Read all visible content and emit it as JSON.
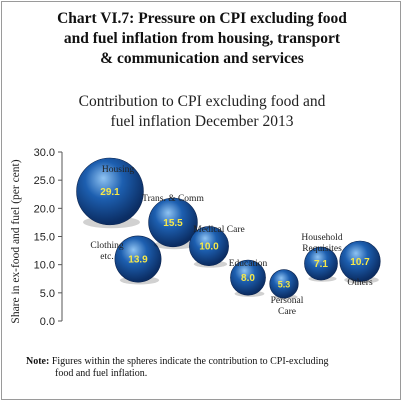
{
  "figure_title": [
    "Chart VI.7: Pressure on CPI excluding food",
    "and fuel inflation from housing, transport",
    "& communication and services"
  ],
  "note": {
    "label": "Note:",
    "line1": "Figures within the spheres indicate the contribution to CPI-excluding",
    "line2": "food and fuel inflation."
  },
  "colors": {
    "bubble_dark": "#0b2d63",
    "bubble_mid": "#1d5fb0",
    "bubble_light": "#8fc3f2",
    "bubble_value": "#f5e84a"
  },
  "chart_data": {
    "type": "scatter",
    "title_lines": [
      "Contribution to CPI excluding food and",
      "fuel inflation December 2013"
    ],
    "xlabel": "",
    "ylabel": "Share in ex-food and fuel (per cent)",
    "ylim": [
      0,
      30
    ],
    "yticks": [
      "0.0",
      "5.0",
      "10.0",
      "15.0",
      "20.0",
      "25.0",
      "30.0"
    ],
    "grid": false,
    "points": [
      {
        "label": "Housing",
        "y": 23.0,
        "value": "29.1"
      },
      {
        "label": "Clothing etc.",
        "y": 11.0,
        "value": "13.9"
      },
      {
        "label": "Trans. & Comm",
        "y": 17.5,
        "value": "15.5"
      },
      {
        "label": "Medical Care",
        "y": 13.3,
        "value": "10.0"
      },
      {
        "label": "Education",
        "y": 7.7,
        "value": "8.0"
      },
      {
        "label": "Personal Care",
        "y": 6.6,
        "value": "5.3"
      },
      {
        "label": "Household Requisites",
        "y": 10.2,
        "value": "7.1"
      },
      {
        "label": "Others",
        "y": 10.6,
        "value": "10.7"
      }
    ]
  }
}
